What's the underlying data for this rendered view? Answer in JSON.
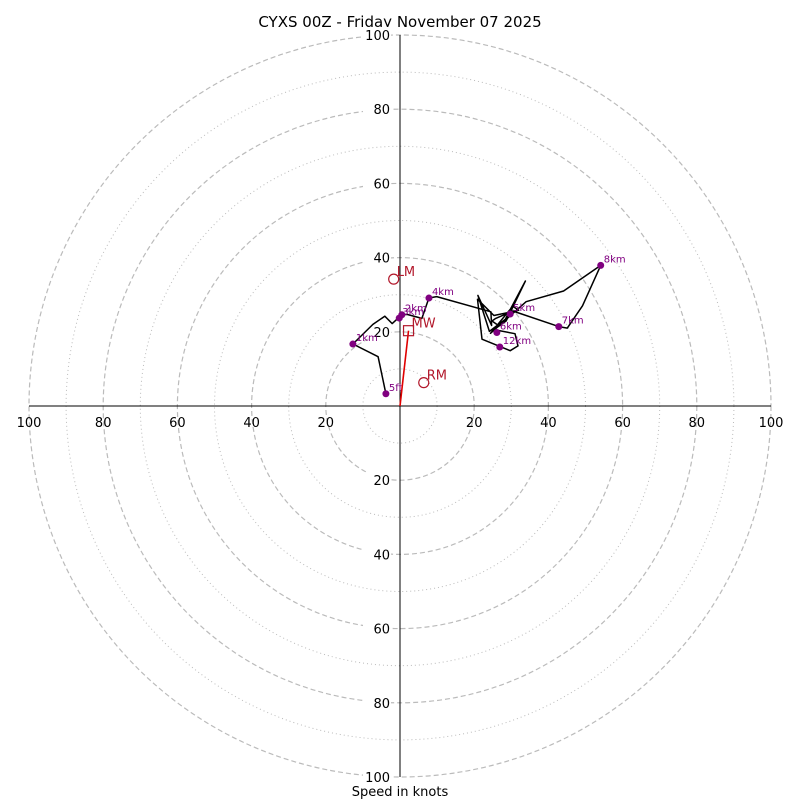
{
  "chart_data": {
    "type": "hodograph",
    "title": "CYXS 00Z - Friday November 07 2025",
    "xlabel": "Speed in knots",
    "rmax": 100,
    "ring_ticks_major": [
      20,
      40,
      60,
      80,
      100
    ],
    "ring_ticks_minor": [
      10,
      30,
      50,
      70,
      90
    ],
    "axis_tick_labels": [
      "100",
      "80",
      "60",
      "40",
      "20",
      "20",
      "40",
      "60",
      "80",
      "100"
    ],
    "hodograph_path": [
      [
        -3.8,
        3.3
      ],
      [
        -5.9,
        13.3
      ],
      [
        -12.7,
        16.7
      ],
      [
        -7.3,
        22.0
      ],
      [
        -4.1,
        24.2
      ],
      [
        -2.1,
        22.2
      ],
      [
        0.5,
        24.6
      ],
      [
        1.9,
        24.7
      ],
      [
        5.9,
        23.6
      ],
      [
        7.8,
        29.1
      ],
      [
        9.9,
        29.5
      ],
      [
        24.5,
        25.4
      ],
      [
        24.7,
        21.7
      ],
      [
        21.0,
        29.8
      ],
      [
        24.1,
        20.1
      ],
      [
        28.4,
        23.4
      ],
      [
        29.6,
        25.8
      ],
      [
        33.8,
        33.7
      ],
      [
        28.6,
        22.9
      ],
      [
        25.3,
        20.6
      ],
      [
        31.0,
        19.5
      ],
      [
        31.8,
        16.2
      ],
      [
        29.7,
        14.9
      ],
      [
        22.1,
        18.0
      ],
      [
        20.9,
        28.8
      ],
      [
        25.3,
        24.4
      ],
      [
        32.0,
        25.8
      ],
      [
        30.4,
        26.9
      ],
      [
        24.4,
        19.6
      ],
      [
        34.0,
        28.1
      ],
      [
        44.1,
        31.0
      ],
      [
        54.1,
        37.9
      ],
      [
        49.2,
        27.0
      ],
      [
        45.1,
        21.0
      ],
      [
        42.8,
        21.4
      ],
      [
        30.4,
        25.6
      ],
      [
        25.8,
        23.6
      ],
      [
        24.8,
        22.9
      ],
      [
        26.1,
        22.0
      ]
    ],
    "levels": [
      {
        "label": "5ft",
        "u": -3.8,
        "v": 3.3
      },
      {
        "label": "1km",
        "u": -12.7,
        "v": 16.7
      },
      {
        "label": "2km",
        "u": 0.5,
        "v": 24.6
      },
      {
        "label": "3km",
        "u": -0.2,
        "v": 23.7
      },
      {
        "label": "4km",
        "u": 7.8,
        "v": 29.1
      },
      {
        "label": "5km",
        "u": 29.7,
        "v": 24.8
      },
      {
        "label": "6km",
        "u": 26.1,
        "v": 19.8
      },
      {
        "label": "7km",
        "u": 42.8,
        "v": 21.4
      },
      {
        "label": "8km",
        "u": 54.1,
        "v": 37.9
      },
      {
        "label": "12km",
        "u": 26.9,
        "v": 15.9
      }
    ],
    "storm_motion": [
      {
        "label": "LM",
        "u": -1.7,
        "v": 34.2,
        "marker": "circle"
      },
      {
        "label": "RM",
        "u": 6.4,
        "v": 6.3,
        "marker": "circle"
      },
      {
        "label": "MW",
        "u": 2.3,
        "v": 20.3,
        "marker": "square"
      }
    ],
    "mean_wind_vector": {
      "u": 2.3,
      "v": 20.3
    }
  },
  "colors": {
    "hodograph": "#000000",
    "level_marker": "#800080",
    "storm_motion": "#b2182b",
    "arrow": "#e00000",
    "grid": "#bbbbbb"
  }
}
